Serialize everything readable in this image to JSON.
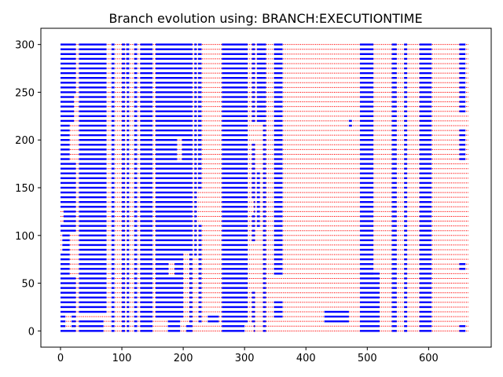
{
  "chart_data": {
    "type": "heatmap",
    "title": "Branch evolution using: BRANCH:EXECUTIONTIME",
    "xlabel": "",
    "ylabel": "",
    "xlim": [
      -32,
      702
    ],
    "ylim": [
      -17,
      317
    ],
    "x_ticks": [
      0,
      100,
      200,
      300,
      400,
      500,
      600
    ],
    "y_ticks": [
      0,
      50,
      100,
      150,
      200,
      250,
      300
    ],
    "grid": false,
    "legend": "none",
    "series_colors": {
      "taken": "#0000ff",
      "not_taken": "#ff0000"
    },
    "rows": {
      "from": 0,
      "to": 300,
      "step": 5
    },
    "x_extent": [
      0,
      665
    ],
    "background_series": {
      "name": "",
      "color": "#ff0000",
      "style": "dotted rows"
    },
    "blue_regions": [
      {
        "x": [
          0,
          25
        ],
        "y": [
          0,
          300
        ]
      },
      {
        "x": [
          30,
          75
        ],
        "y": [
          20,
          300
        ]
      },
      {
        "x": [
          30,
          70
        ],
        "y": [
          0,
          12
        ]
      },
      {
        "x": [
          83,
          88
        ],
        "y": [
          0,
          300
        ]
      },
      {
        "x": [
          100,
          105
        ],
        "y": [
          0,
          300
        ]
      },
      {
        "x": [
          108,
          112
        ],
        "y": [
          0,
          300
        ]
      },
      {
        "x": [
          107,
          112
        ],
        "y": [
          260,
          300
        ]
      },
      {
        "x": [
          120,
          125
        ],
        "y": [
          0,
          300
        ]
      },
      {
        "x": [
          130,
          150
        ],
        "y": [
          15,
          300
        ]
      },
      {
        "x": [
          155,
          215
        ],
        "y": [
          15,
          300
        ]
      },
      {
        "x": [
          130,
          150
        ],
        "y": [
          0,
          10
        ]
      },
      {
        "x": [
          175,
          195
        ],
        "y": [
          0,
          10
        ]
      },
      {
        "x": [
          205,
          215
        ],
        "y": [
          0,
          10
        ]
      },
      {
        "x": [
          218,
          222
        ],
        "y": [
          80,
          300
        ]
      },
      {
        "x": [
          224,
          230
        ],
        "y": [
          150,
          300
        ]
      },
      {
        "x": [
          225,
          230
        ],
        "y": [
          10,
          110
        ]
      },
      {
        "x": [
          263,
          305
        ],
        "y": [
          0,
          300
        ]
      },
      {
        "x": [
          240,
          258
        ],
        "y": [
          10,
          15
        ]
      },
      {
        "x": [
          312,
          317
        ],
        "y": [
          0,
          300
        ]
      },
      {
        "x": [
          320,
          330
        ],
        "y": [
          220,
          300
        ]
      },
      {
        "x": [
          320,
          325
        ],
        "y": [
          110,
          165
        ]
      },
      {
        "x": [
          330,
          335
        ],
        "y": [
          0,
          300
        ]
      },
      {
        "x": [
          348,
          362
        ],
        "y": [
          60,
          300
        ]
      },
      {
        "x": [
          348,
          362
        ],
        "y": [
          15,
          30
        ]
      },
      {
        "x": [
          430,
          470
        ],
        "y": [
          10,
          20
        ]
      },
      {
        "x": [
          470,
          475
        ],
        "y": [
          215,
          222
        ]
      },
      {
        "x": [
          488,
          510
        ],
        "y": [
          60,
          300
        ]
      },
      {
        "x": [
          488,
          520
        ],
        "y": [
          0,
          60
        ]
      },
      {
        "x": [
          540,
          548
        ],
        "y": [
          0,
          300
        ]
      },
      {
        "x": [
          560,
          565
        ],
        "y": [
          0,
          300
        ]
      },
      {
        "x": [
          585,
          605
        ],
        "y": [
          0,
          300
        ]
      },
      {
        "x": [
          650,
          660
        ],
        "y": [
          230,
          300
        ]
      },
      {
        "x": [
          650,
          660
        ],
        "y": [
          180,
          210
        ]
      },
      {
        "x": [
          650,
          660
        ],
        "y": [
          65,
          70
        ]
      },
      {
        "x": [
          650,
          660
        ],
        "y": [
          0,
          8
        ]
      }
    ],
    "gaps": [
      {
        "x": [
          0,
          5
        ],
        "y": [
          115,
          125
        ]
      },
      {
        "x": [
          15,
          25
        ],
        "y": [
          60,
          100
        ]
      },
      {
        "x": [
          15,
          25
        ],
        "y": [
          180,
          215
        ]
      },
      {
        "x": [
          22,
          30
        ],
        "y": [
          195,
          245
        ]
      },
      {
        "x": [
          0,
          3
        ],
        "y": [
          85,
          100
        ]
      },
      {
        "x": [
          8,
          18
        ],
        "y": [
          5,
          18
        ]
      },
      {
        "x": [
          176,
          186
        ],
        "y": [
          60,
          70
        ]
      },
      {
        "x": [
          190,
          198
        ],
        "y": [
          180,
          200
        ]
      },
      {
        "x": [
          200,
          210
        ],
        "y": [
          10,
          80
        ]
      },
      {
        "x": [
          305,
          315
        ],
        "y": [
          125,
          135
        ]
      },
      {
        "x": [
          312,
          320
        ],
        "y": [
          200,
          215
        ]
      },
      {
        "x": [
          310,
          320
        ],
        "y": [
          45,
          90
        ]
      },
      {
        "x": [
          300,
          315
        ],
        "y": [
          0,
          8
        ]
      }
    ]
  }
}
